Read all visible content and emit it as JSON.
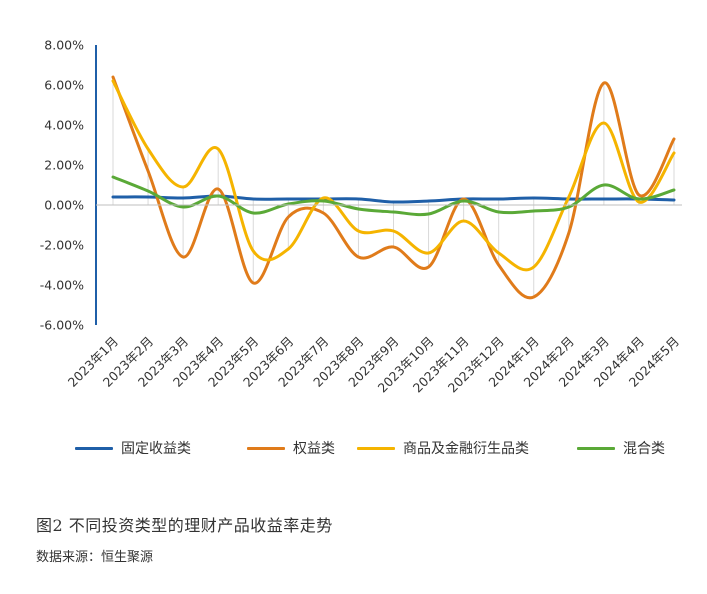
{
  "chart_data": {
    "type": "line",
    "categories": [
      "2023年1月",
      "2023年2月",
      "2023年3月",
      "2023年4月",
      "2023年5月",
      "2023年6月",
      "2023年7月",
      "2023年8月",
      "2023年9月",
      "2023年10月",
      "2023年11月",
      "2023年12月",
      "2024年1月",
      "2024年2月",
      "2024年3月",
      "2024年4月",
      "2024年5月"
    ],
    "y_ticks": [
      "8.00%",
      "6.00%",
      "4.00%",
      "2.00%",
      "0.00%",
      "-2.00%",
      "-4.00%",
      "-6.00%"
    ],
    "ylim": [
      -6,
      8
    ],
    "grid": false,
    "legend_position": "bottom",
    "series": [
      {
        "name": "固定收益类",
        "color": "#1f5fa8",
        "values": [
          0.4,
          0.4,
          0.35,
          0.45,
          0.3,
          0.3,
          0.3,
          0.3,
          0.15,
          0.2,
          0.3,
          0.3,
          0.35,
          0.3,
          0.3,
          0.3,
          0.25
        ]
      },
      {
        "name": "权益类",
        "color": "#e07b1a",
        "values": [
          6.4,
          1.7,
          -2.6,
          0.8,
          -3.9,
          -0.6,
          -0.4,
          -2.6,
          -2.1,
          -3.1,
          0.3,
          -3.0,
          -4.6,
          -1.4,
          6.1,
          0.5,
          3.3
        ]
      },
      {
        "name": "商品及金融衍生品类",
        "color": "#f5b400",
        "values": [
          6.2,
          2.8,
          0.9,
          2.8,
          -2.3,
          -2.2,
          0.35,
          -1.3,
          -1.3,
          -2.4,
          -0.8,
          -2.4,
          -3.1,
          0.4,
          4.1,
          0.15,
          2.6
        ]
      },
      {
        "name": "混合类",
        "color": "#5aa937",
        "values": [
          1.4,
          0.7,
          -0.1,
          0.45,
          -0.4,
          0.05,
          0.2,
          -0.2,
          -0.35,
          -0.45,
          0.2,
          -0.35,
          -0.3,
          -0.1,
          1.0,
          0.3,
          0.75
        ]
      }
    ]
  },
  "caption": "图2   不同投资类型的理财产品收益率走势",
  "source": "数据来源：恒生聚源"
}
